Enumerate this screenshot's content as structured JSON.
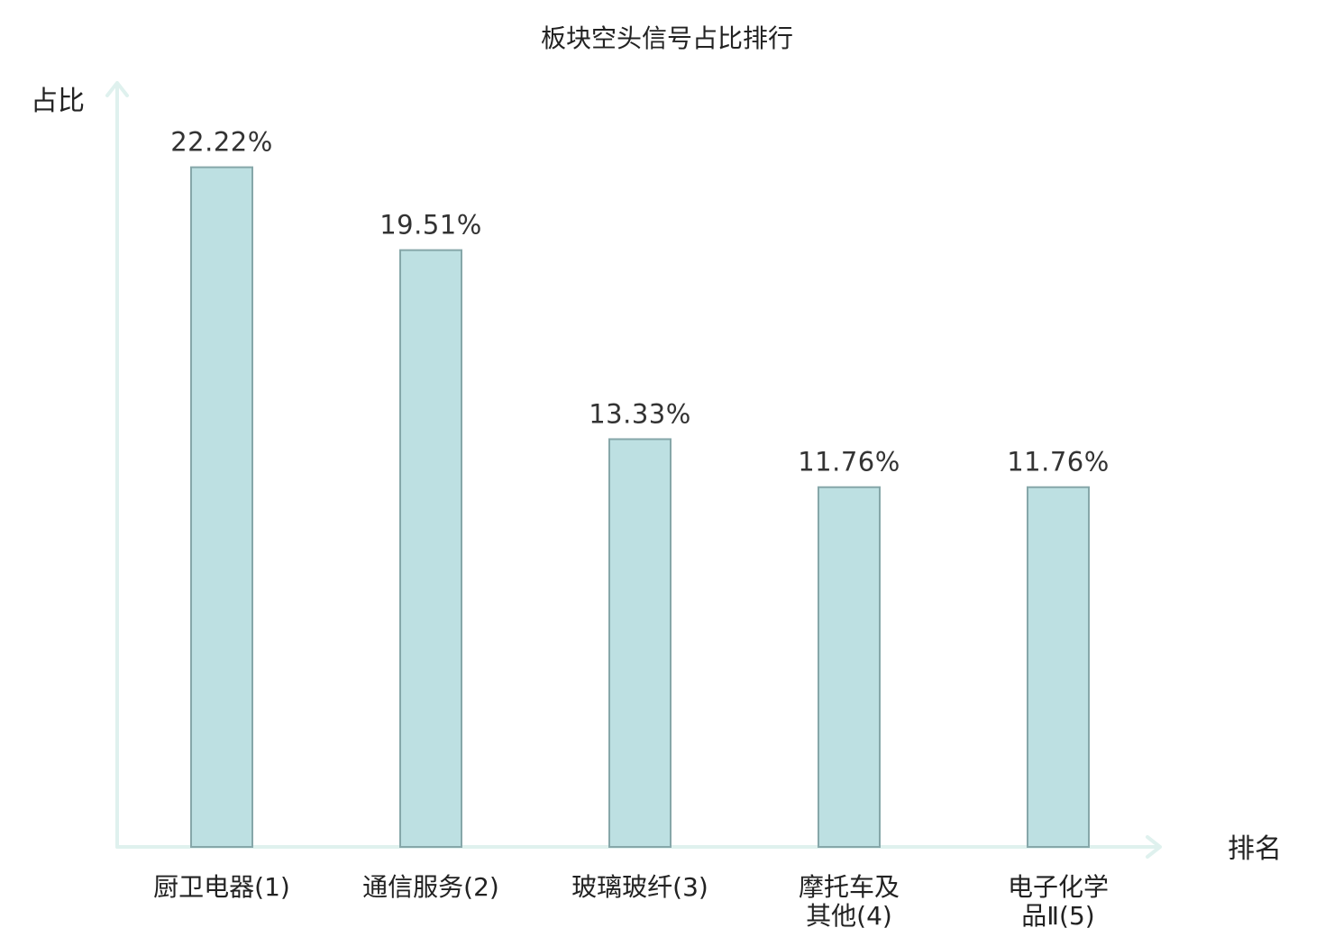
{
  "chart_data": {
    "type": "bar",
    "title": "板块空头信号占比排行",
    "ylabel": "占比",
    "xlabel": "排名",
    "categories": [
      [
        "厨卫电器(1)"
      ],
      [
        "通信服务(2)"
      ],
      [
        "玻璃玻纤(3)"
      ],
      [
        "摩托车及",
        "其他(4)"
      ],
      [
        "电子化学",
        "品Ⅱ(5)"
      ]
    ],
    "values": [
      22.22,
      19.51,
      13.33,
      11.76,
      11.76
    ],
    "value_labels": [
      "22.22%",
      "19.51%",
      "13.33%",
      "11.76%",
      "11.76%"
    ],
    "highlight_index": 1,
    "ylim": [
      0,
      25
    ],
    "grid": false,
    "colors": {
      "bar_fill": "#bde0e2",
      "bar_stroke": "#86a7a9",
      "axis": "#dff1ee",
      "text": "#222222",
      "highlight_text": "#e02020"
    }
  }
}
